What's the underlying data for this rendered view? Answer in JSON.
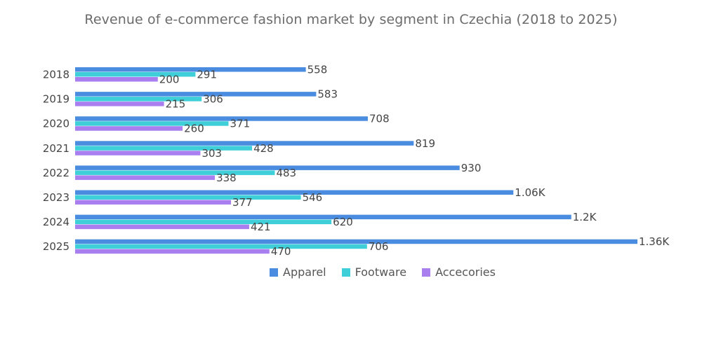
{
  "chart_data": {
    "type": "bar",
    "orientation": "horizontal",
    "title": "Revenue of e-commerce fashion market by segment in Czechia (2018 to 2025)",
    "categories": [
      "2018",
      "2019",
      "2020",
      "2021",
      "2022",
      "2023",
      "2024",
      "2025"
    ],
    "series": [
      {
        "name": "Apparel",
        "color": "#4a8de0",
        "values": [
          558,
          583,
          708,
          819,
          930,
          1060,
          1200,
          1360
        ],
        "labels": [
          "558",
          "583",
          "708",
          "819",
          "930",
          "1.06K",
          "1.2K",
          "1.36K"
        ]
      },
      {
        "name": "Footware",
        "color": "#3ecfd9",
        "values": [
          291,
          306,
          371,
          428,
          483,
          546,
          620,
          706
        ],
        "labels": [
          "291",
          "306",
          "371",
          "428",
          "483",
          "546",
          "620",
          "706"
        ]
      },
      {
        "name": "Accecories",
        "color": "#a97ff0",
        "values": [
          200,
          215,
          260,
          303,
          338,
          377,
          421,
          470
        ],
        "labels": [
          "200",
          "215",
          "260",
          "303",
          "338",
          "377",
          "421",
          "470"
        ]
      }
    ],
    "xlim": [
      0,
      1360
    ],
    "grid": false,
    "legend_position": "bottom"
  }
}
